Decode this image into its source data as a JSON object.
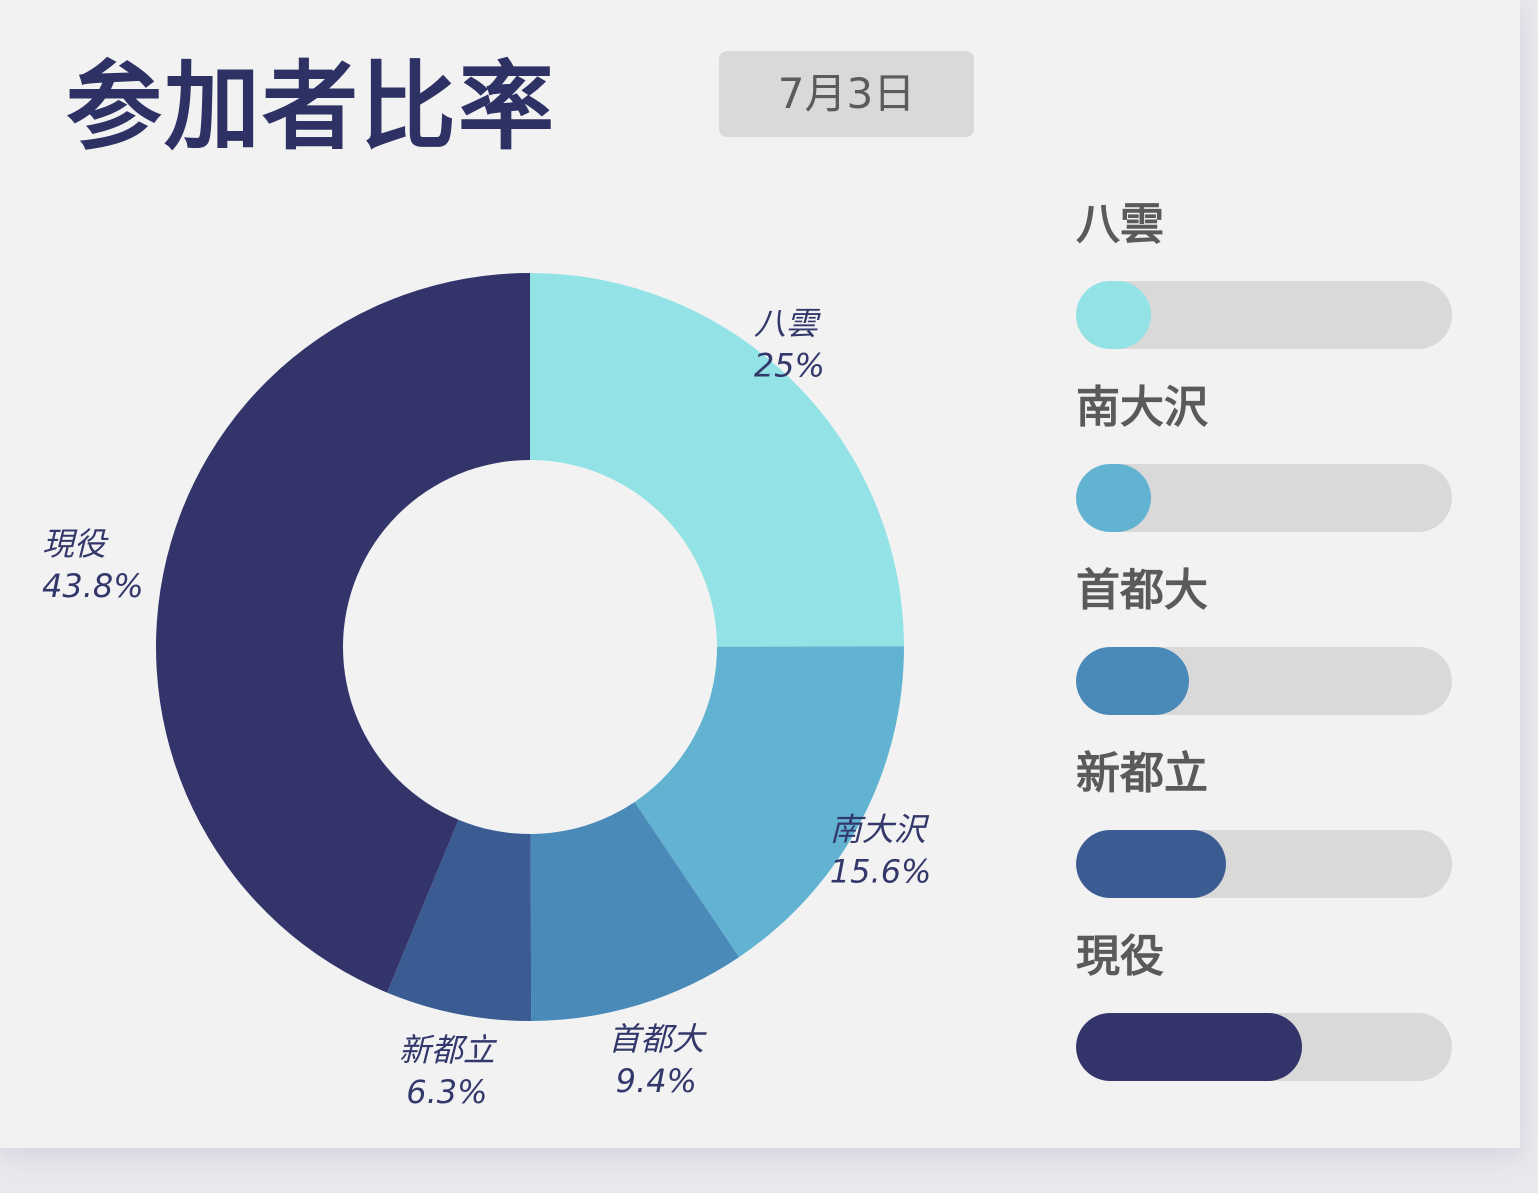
{
  "title": "参加者比率",
  "date_label": "7月3日",
  "colors": {
    "title": "#2e3163",
    "label_text": "#33386b",
    "legend_text": "#5a5a5a",
    "track": "#d9d9d9",
    "badge_bg": "#d9d9d9",
    "hole": "#f2f2f3"
  },
  "chart_data": [
    {
      "type": "pie",
      "variant": "donut",
      "categories": [
        "八雲",
        "南大沢",
        "首都大",
        "新都立",
        "現役"
      ],
      "values": [
        25,
        15.6,
        9.4,
        6.3,
        43.8
      ],
      "value_labels": [
        "25%",
        "15.6%",
        "9.4%",
        "6.3%",
        "43.8%"
      ],
      "colors": [
        "#93e3e6",
        "#62b3d1",
        "#4a8ab8",
        "#3a5c93",
        "#33346a"
      ],
      "start_angle": "12 o'clock",
      "direction": "clockwise",
      "legend": "none"
    },
    {
      "type": "bar",
      "orientation": "horizontal",
      "style": "progress",
      "categories": [
        "八雲",
        "南大沢",
        "首都大",
        "新都立",
        "現役"
      ],
      "fill_fraction": [
        0.2,
        0.2,
        0.3,
        0.4,
        0.6
      ],
      "colors": [
        "#93e3e6",
        "#62b3d1",
        "#4a8ab8",
        "#3a5c93",
        "#33346a"
      ]
    }
  ]
}
